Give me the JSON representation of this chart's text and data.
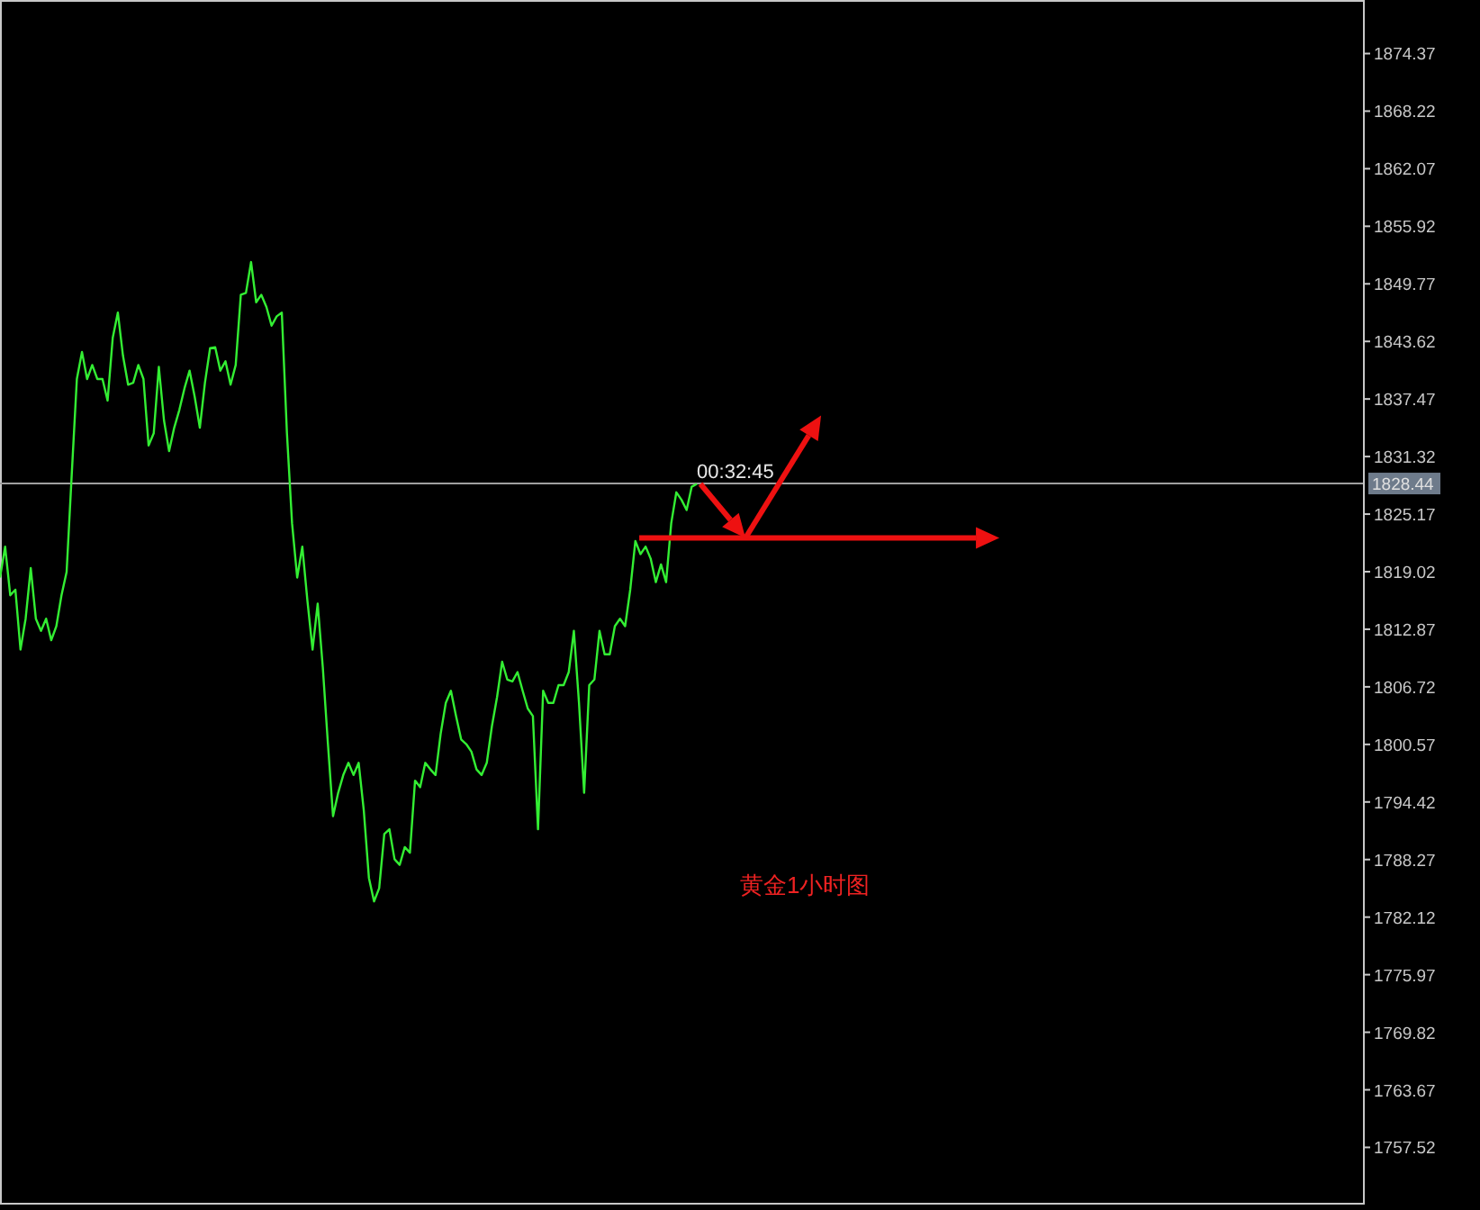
{
  "chart_data": {
    "type": "line",
    "categories": [
      null,
      null,
      null,
      null,
      null,
      null,
      null,
      null,
      null,
      null,
      null,
      null,
      null,
      null,
      null,
      null,
      null,
      null,
      null,
      null,
      null,
      null,
      null,
      null,
      null,
      null,
      null,
      null,
      null,
      null,
      null,
      null,
      null,
      null,
      null,
      null,
      null,
      null,
      null,
      null,
      null,
      null,
      null,
      null,
      null,
      null,
      null,
      null,
      null,
      null,
      null,
      null,
      null,
      null,
      null,
      null,
      null,
      null,
      null,
      null,
      null,
      null,
      null,
      null,
      null,
      null,
      null,
      null,
      null,
      null,
      null,
      null,
      null,
      null,
      null,
      null,
      null,
      null,
      null,
      null,
      null,
      null,
      null,
      null,
      null,
      null,
      null,
      null,
      null,
      null,
      null,
      null,
      null,
      null,
      null,
      null,
      null,
      null,
      null,
      null,
      null,
      null,
      null,
      null,
      null,
      null,
      null,
      null,
      null,
      null,
      null,
      null,
      null,
      null,
      null,
      null,
      null,
      null,
      null,
      null,
      null,
      null,
      null,
      null,
      null,
      null,
      null,
      null,
      null,
      null,
      null,
      null,
      null,
      null,
      null,
      null,
      null,
      null,
      null,
      null,
      null,
      null,
      null,
      null,
      null,
      null,
      null,
      null,
      null,
      null,
      null,
      null,
      null,
      null,
      null,
      null,
      null,
      null,
      null,
      null,
      null,
      null,
      null,
      null,
      null,
      null,
      null,
      null,
      null,
      null,
      null,
      null,
      null,
      null,
      null,
      null,
      null,
      null,
      null,
      null,
      null,
      null,
      null,
      null,
      null,
      null,
      null,
      null,
      null,
      null,
      null,
      null,
      null,
      null,
      null,
      null,
      null,
      null,
      null,
      null,
      null,
      null,
      null,
      null,
      null,
      null,
      null,
      null,
      null,
      null,
      null,
      null,
      null,
      null,
      null,
      null,
      null,
      null,
      null,
      null,
      null,
      null,
      null,
      null,
      null,
      null,
      null,
      null,
      null,
      null,
      null,
      null,
      null,
      null,
      null,
      null,
      null,
      null,
      null,
      null,
      null,
      null,
      null,
      null,
      null,
      null,
      null,
      null,
      null,
      null,
      null,
      null,
      null,
      null,
      null,
      null,
      null,
      null,
      null,
      null,
      null,
      null,
      null,
      null,
      null,
      null,
      null
    ],
    "series": [
      {
        "color": "#33ee33",
        "values": [
          1818.4,
          1821.7,
          1816.5,
          1817.1,
          1810.7,
          1814.0,
          1819.4,
          1814.0,
          1812.7,
          1814.0,
          1811.7,
          1813.2,
          1816.5,
          1819.0,
          1829.4,
          1839.6,
          1842.5,
          1839.6,
          1841.1,
          1839.6,
          1839.6,
          1837.3,
          1844.0,
          1846.7,
          1842.1,
          1839.0,
          1839.2,
          1841.1,
          1839.6,
          1832.5,
          1833.8,
          1840.9,
          1835.2,
          1831.9,
          1834.4,
          1836.3,
          1838.6,
          1840.5,
          1837.7,
          1834.4,
          1839.2,
          1842.9,
          1843.0,
          1840.5,
          1841.5,
          1839.0,
          1841.1,
          1848.6,
          1848.8,
          1852.1,
          1847.8,
          1848.6,
          1847.3,
          1845.3,
          1846.3,
          1846.7,
          1833.8,
          1824.2,
          1818.4,
          1821.7,
          1815.9,
          1810.7,
          1815.6,
          1808.8,
          1800.6,
          1792.9,
          1795.4,
          1797.3,
          1798.6,
          1797.3,
          1798.6,
          1793.5,
          1786.3,
          1783.8,
          1785.2,
          1791.0,
          1791.5,
          1788.3,
          1787.7,
          1789.6,
          1789.0,
          1796.7,
          1796.0,
          1798.6,
          1797.9,
          1797.3,
          1801.7,
          1805.0,
          1806.3,
          1803.6,
          1801.1,
          1800.6,
          1799.8,
          1797.9,
          1797.3,
          1798.6,
          1802.5,
          1805.6,
          1809.4,
          1807.5,
          1807.3,
          1808.3,
          1806.3,
          1804.4,
          1803.6,
          1791.5,
          1806.3,
          1805.0,
          1805.0,
          1806.9,
          1806.9,
          1808.3,
          1812.7,
          1805.0,
          1795.4,
          1806.9,
          1807.5,
          1812.7,
          1810.2,
          1810.2,
          1813.2,
          1814.0,
          1813.2,
          1817.1,
          1822.3,
          1820.9,
          1821.7,
          1820.4,
          1817.9,
          1819.8,
          1817.9,
          1824.2,
          1827.5,
          1826.7,
          1825.6,
          1828.1,
          1828.4,
          null,
          null,
          null,
          null,
          null,
          null,
          null,
          null,
          null,
          null,
          null,
          null,
          null,
          null,
          null,
          null,
          null,
          null,
          null,
          null,
          null,
          null,
          null,
          null,
          null,
          null,
          null,
          null,
          null,
          null,
          null,
          null,
          null,
          null,
          null,
          null,
          null,
          null,
          null,
          null,
          null,
          null,
          null,
          null,
          null,
          null,
          null,
          null,
          null,
          null,
          null,
          null,
          null,
          null,
          null,
          null,
          null,
          null,
          null,
          null,
          null,
          null,
          null,
          null,
          null,
          null,
          null,
          null,
          null,
          null,
          null,
          null,
          null,
          null,
          null,
          null,
          null,
          null,
          null,
          null,
          null,
          null,
          null,
          null,
          null,
          null,
          null,
          null,
          null,
          null,
          null,
          null,
          null,
          null,
          null,
          null,
          null,
          null,
          null,
          null,
          null,
          null,
          null,
          null,
          null,
          null,
          null,
          null,
          null,
          null,
          null,
          null,
          null,
          null,
          null,
          null,
          null,
          null,
          null,
          null,
          null,
          null,
          null,
          null,
          null,
          null,
          null,
          null,
          null,
          null
        ]
      }
    ],
    "ylim": [
      1751.6,
      1879.9
    ],
    "yticks": [
      1874.37,
      1868.22,
      1862.07,
      1855.92,
      1849.77,
      1843.62,
      1837.47,
      1831.32,
      1825.17,
      1819.02,
      1812.87,
      1806.72,
      1800.57,
      1794.42,
      1788.27,
      1782.12,
      1775.97,
      1769.82,
      1763.67,
      1757.52
    ],
    "ref_lines": [
      {
        "axis": "y",
        "value": 1828.44,
        "label": "1828.44",
        "color": "#a0a0a0"
      }
    ],
    "annotations": [
      "00:32:45",
      "黄金1小时图"
    ]
  }
}
